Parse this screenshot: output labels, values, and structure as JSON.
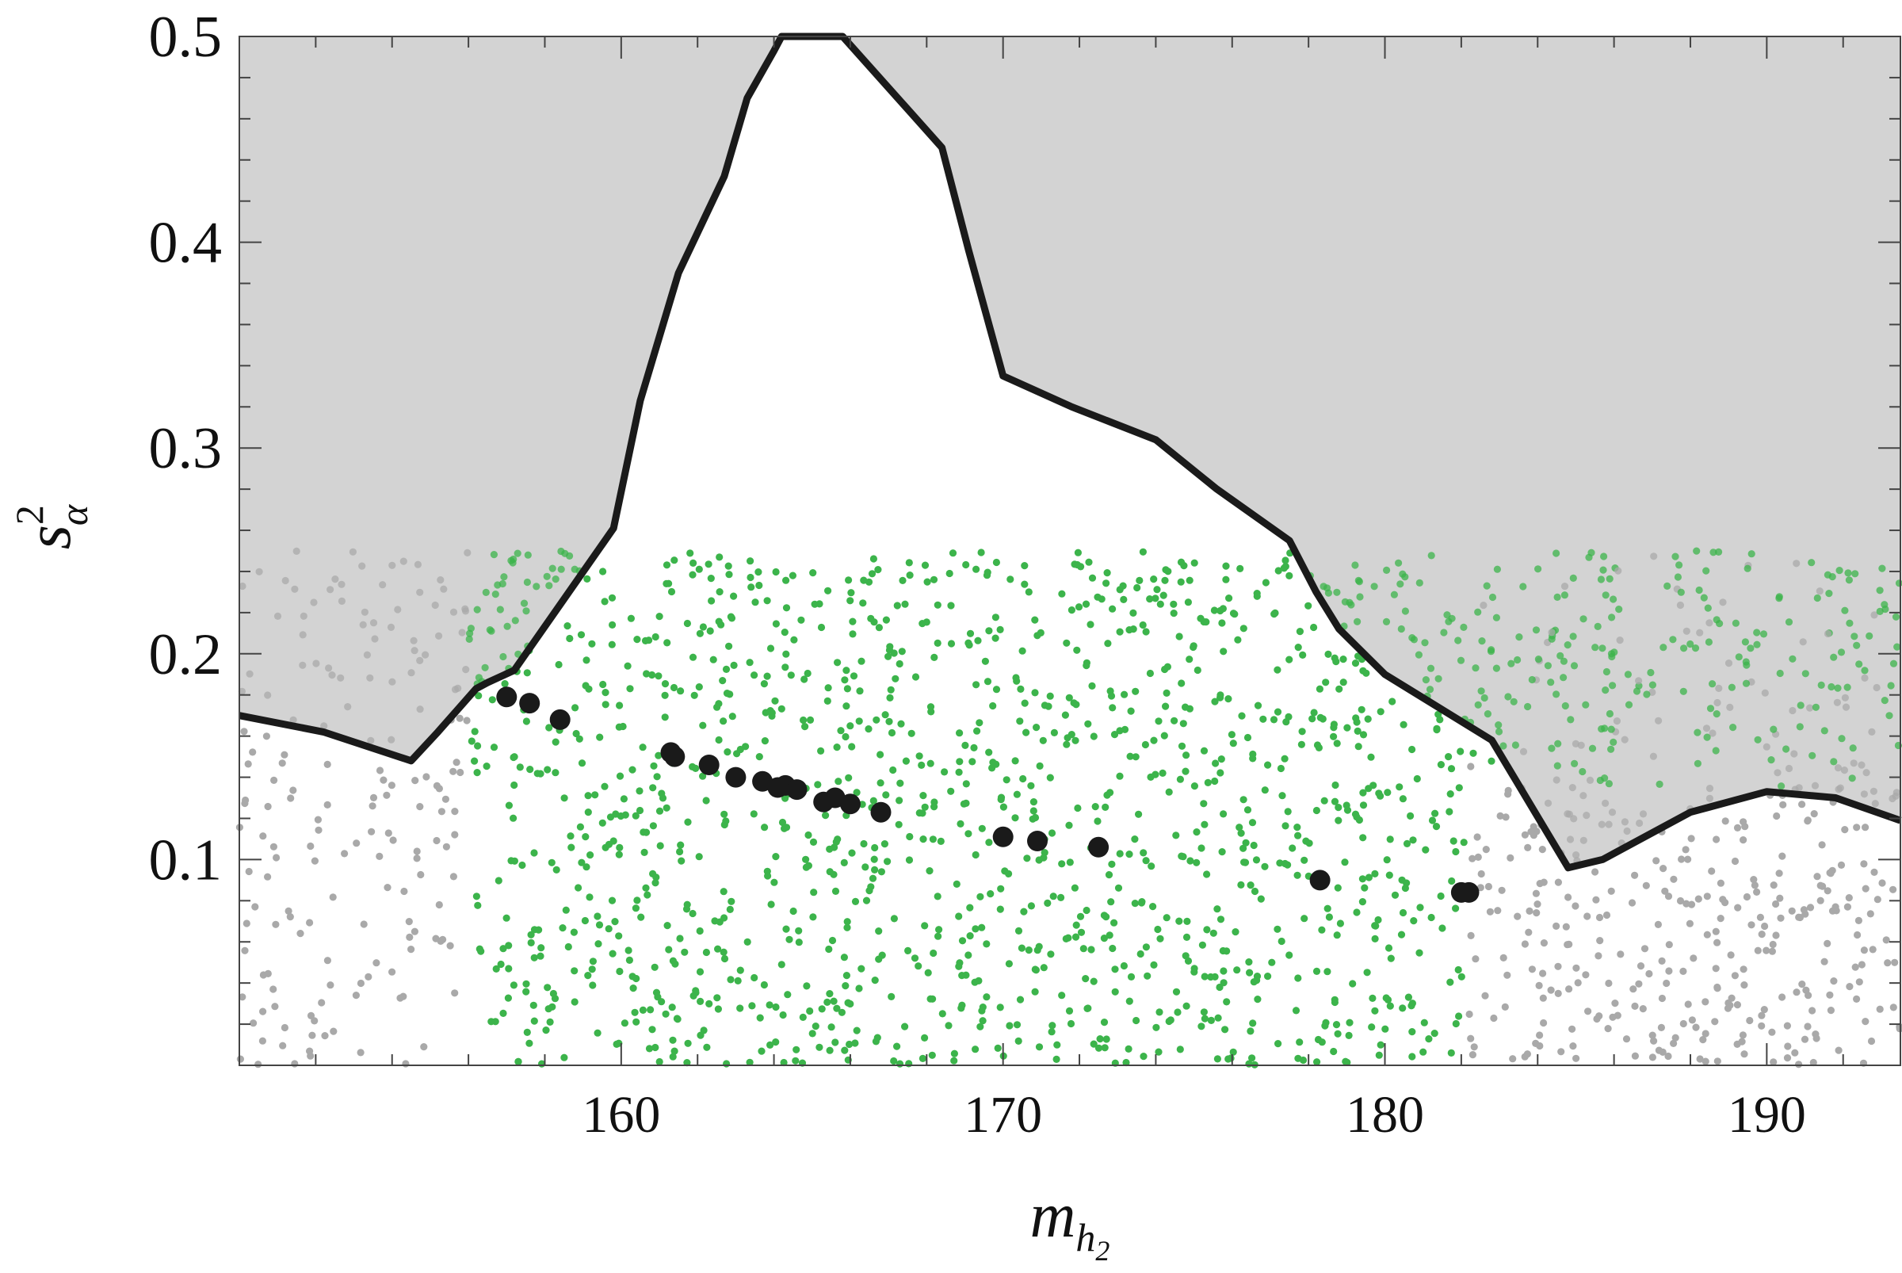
{
  "chart_data": {
    "type": "scatter",
    "title": "",
    "xlabel": "m",
    "xlabel_subscript": "h",
    "xlabel_subsubscript": "2",
    "ylabel": "s",
    "ylabel_superscript": "2",
    "ylabel_subscript": "α",
    "xlim": [
      150,
      193.5
    ],
    "ylim": [
      0,
      0.5
    ],
    "x_ticks": [
      160,
      170,
      180,
      190
    ],
    "y_ticks": [
      0.1,
      0.2,
      0.3,
      0.4,
      0.5
    ],
    "x_tick_labels": [
      "160",
      "170",
      "180",
      "190"
    ],
    "y_tick_labels": [
      "0.1",
      "0.2",
      "0.3",
      "0.4",
      "0.5"
    ],
    "grid": false,
    "legend": "none",
    "colors": {
      "excluded_region": "#d3d3d3",
      "boundary": "#1a1a1a",
      "green_points": "#3cb44b",
      "gray_points": "#a9a9a9",
      "black_points": "#1a1a1a"
    },
    "series": [
      {
        "kind": "excluded-region-boundary",
        "x": [
          150,
          152.2,
          154.5,
          155.2,
          156.2,
          156.5,
          157.2,
          159.8,
          160.5,
          161.5,
          162.7,
          163.3,
          164.0,
          164.2,
          165.8,
          168.4,
          169.1,
          170.0,
          171.8,
          174.0,
          175.6,
          177.5,
          178.2,
          178.8,
          180.0,
          182.8,
          184.8,
          185.7,
          188.0,
          190.0,
          191.8,
          193.5
        ],
        "y": [
          0.17,
          0.162,
          0.148,
          0.162,
          0.183,
          0.186,
          0.192,
          0.261,
          0.323,
          0.385,
          0.432,
          0.47,
          0.493,
          0.5,
          0.5,
          0.446,
          0.396,
          0.335,
          0.32,
          0.304,
          0.28,
          0.255,
          0.23,
          0.212,
          0.19,
          0.158,
          0.096,
          0.1,
          0.123,
          0.133,
          0.13,
          0.119
        ]
      },
      {
        "kind": "benchmark-points",
        "x": [
          157.0,
          157.6,
          158.4,
          161.3,
          161.4,
          162.3,
          163.0,
          163.7,
          164.1,
          164.3,
          164.6,
          165.3,
          165.6,
          166.0,
          166.8,
          170.0,
          170.9,
          172.5,
          178.3,
          182.0,
          182.2
        ],
        "y": [
          0.179,
          0.176,
          0.168,
          0.152,
          0.15,
          0.146,
          0.14,
          0.138,
          0.135,
          0.136,
          0.134,
          0.128,
          0.13,
          0.127,
          0.123,
          0.111,
          0.109,
          0.106,
          0.09,
          0.084,
          0.084
        ]
      },
      {
        "kind": "scan-points",
        "description_colors": "green inside allowed region, gray otherwise",
        "count": 2200,
        "x_range": [
          150,
          193.5
        ],
        "y_range": [
          0,
          0.25
        ]
      }
    ]
  }
}
